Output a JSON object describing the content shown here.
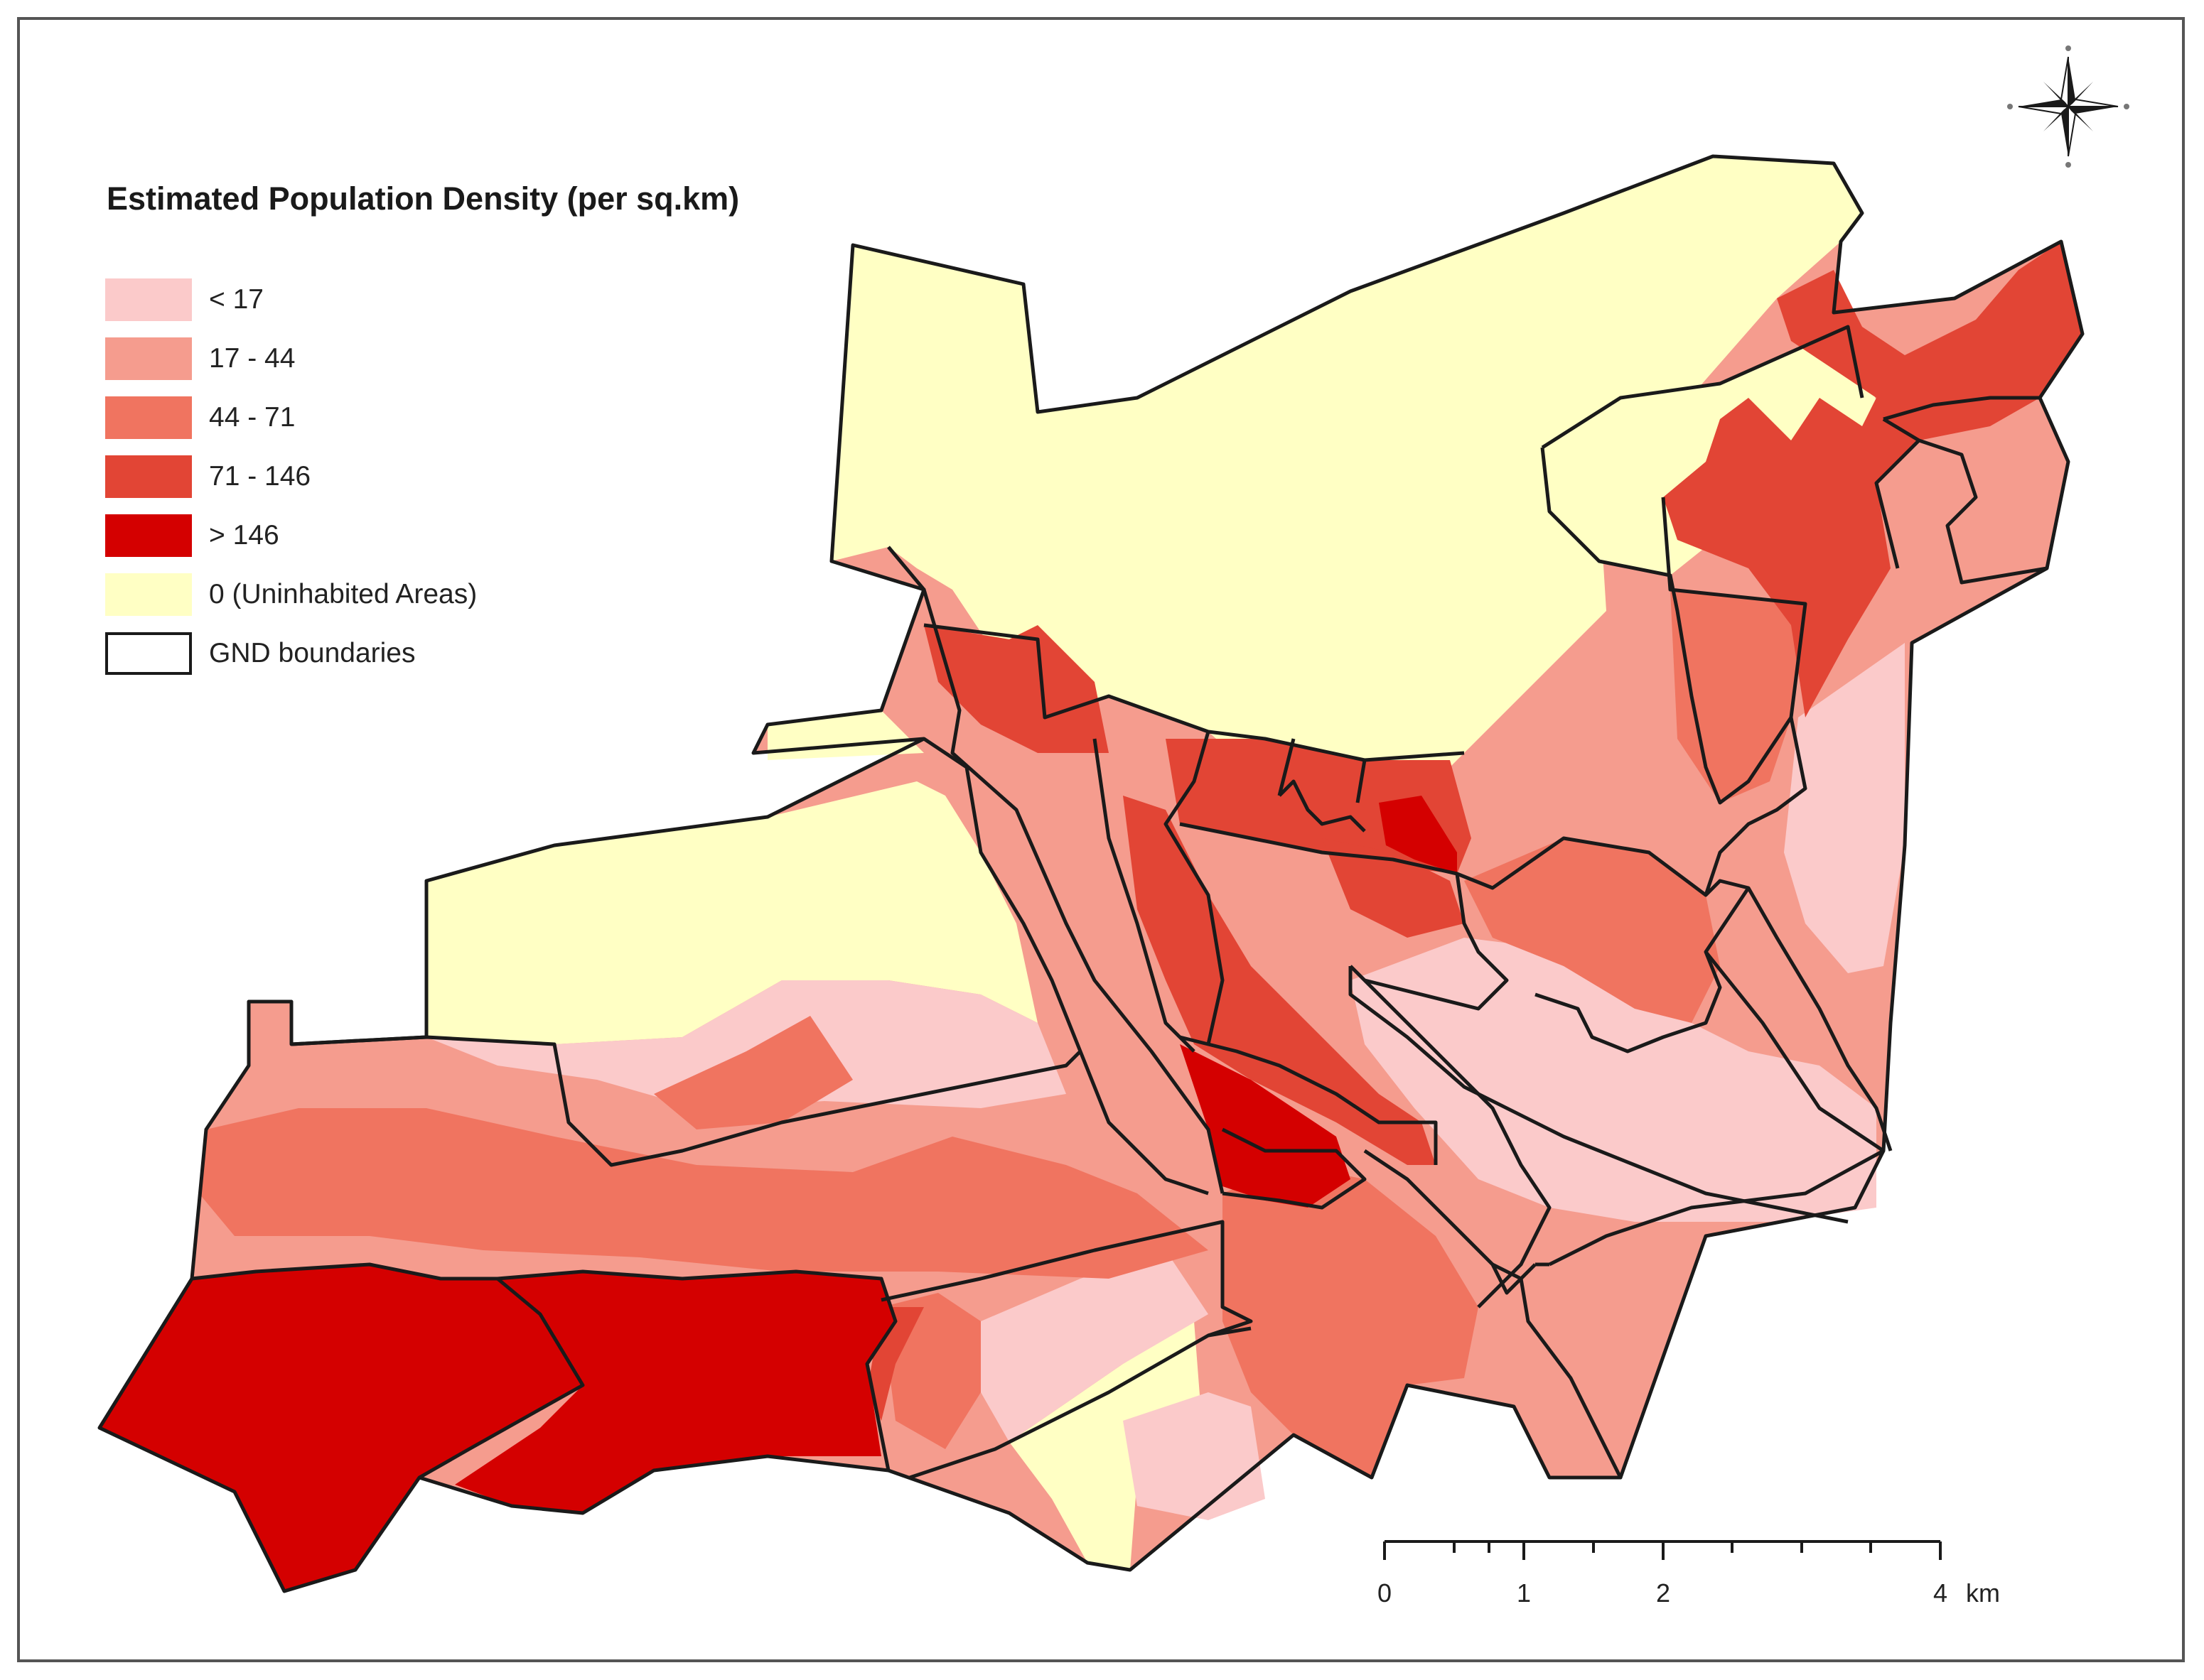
{
  "legend": {
    "title": "Estimated Population Density (per sq.km)",
    "items": [
      {
        "label": "< 17",
        "color": "#fbcaca"
      },
      {
        "label": "17 - 44",
        "color": "#f59c8e"
      },
      {
        "label": "44 - 71",
        "color": "#f07460"
      },
      {
        "label": "71 - 146",
        "color": "#e24535"
      },
      {
        "label": "> 146",
        "color": "#d40000"
      },
      {
        "label": "0 (Uninhabited Areas)",
        "color": "#ffffc4"
      },
      {
        "label": "GND boundaries",
        "color": "#ffffff"
      }
    ]
  },
  "scale_bar": {
    "labels": [
      "0",
      "1",
      "2",
      "4"
    ],
    "unit": "km"
  },
  "north_arrow": {
    "icon": "compass-rose-icon"
  },
  "colors": {
    "boundary": "#1a1a1a",
    "frame": "#555555"
  }
}
